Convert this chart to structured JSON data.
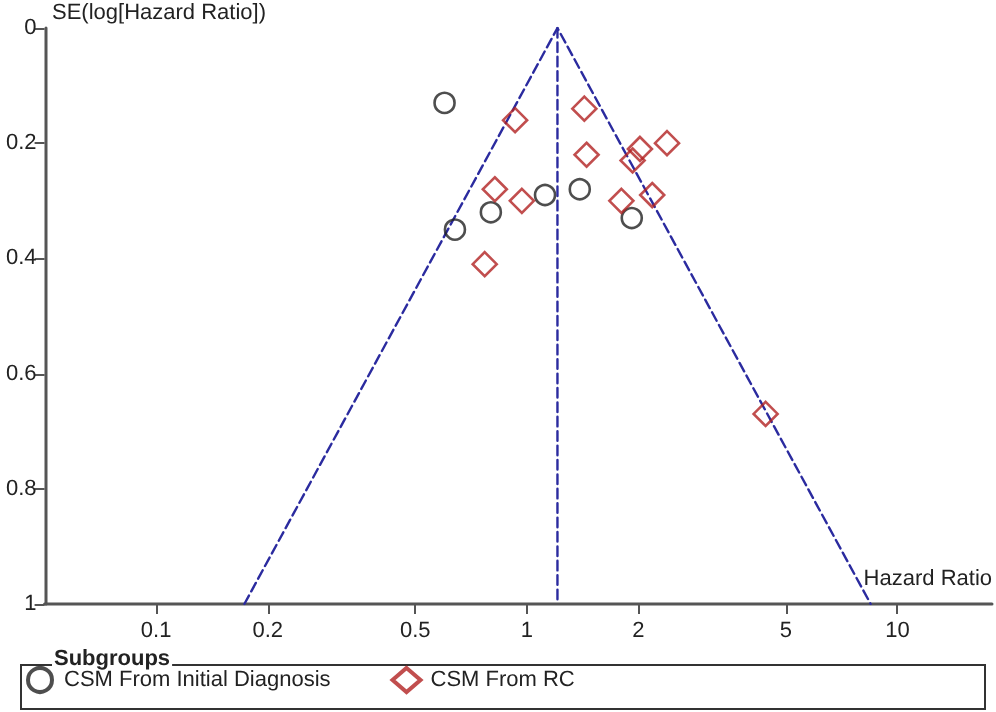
{
  "chart_data": {
    "type": "scatter",
    "xlabel": "Hazard Ratio",
    "ylabel": "SE(log[Hazard Ratio])",
    "legend_title": "Subgroups",
    "legend": "bottom",
    "grid": false,
    "log": "x",
    "xlim": [
      0.05,
      18
    ],
    "xticks": [
      0.1,
      0.2,
      0.5,
      1,
      2,
      5,
      10
    ],
    "ylim": [
      1,
      0
    ],
    "yticks": [
      0,
      0.2,
      0.4,
      0.6,
      0.8,
      1
    ],
    "series": [
      {
        "name": "CSM From Initial Diagnosis",
        "color": "#222222",
        "marker": "circle",
        "x": [
          0.6,
          0.64,
          0.8,
          1.12,
          1.39,
          1.92
        ],
        "values": [
          0.13,
          0.35,
          0.32,
          0.29,
          0.28,
          0.33
        ]
      },
      {
        "name": "CSM From RC",
        "color": "#b22222",
        "marker": "diamond",
        "x": [
          0.93,
          1.43,
          1.45,
          2.02,
          1.93,
          2.39,
          0.82,
          0.97,
          1.8,
          2.18,
          0.77,
          4.41
        ],
        "values": [
          0.16,
          0.14,
          0.22,
          0.21,
          0.23,
          0.2,
          0.28,
          0.3,
          0.3,
          0.29,
          0.41,
          0.67
        ]
      },
      {
        "type": "line",
        "color": "#2b2b9f",
        "marker": "none",
        "line_style": "dashed",
        "x": [
          0.173,
          1.21,
          8.47
        ],
        "values": [
          1,
          0,
          1
        ]
      },
      {
        "type": "line",
        "color": "#2b2b9f",
        "marker": "none",
        "line_style": "dashed",
        "x": [
          1.21,
          1.21
        ],
        "values": [
          0,
          1
        ]
      }
    ]
  }
}
